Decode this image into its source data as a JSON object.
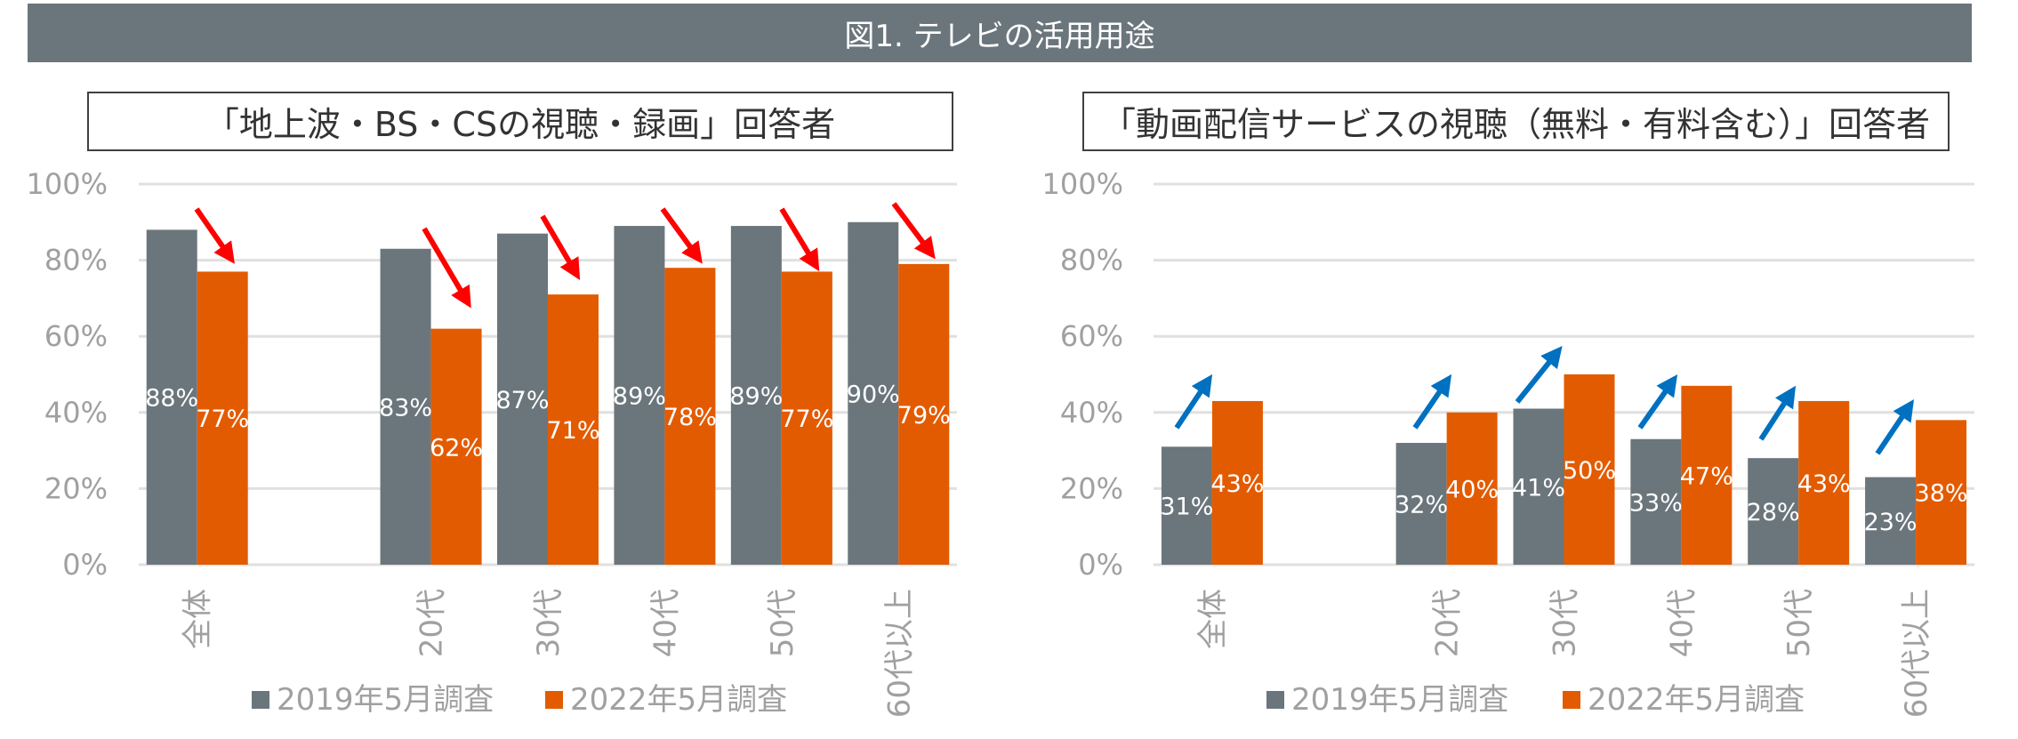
{
  "header": {
    "title": "図1. テレビの活用用途"
  },
  "colors": {
    "header": "#6b767c",
    "series2019": "#6b767c",
    "series2022": "#e35b00",
    "arrow_down": "#ff0000",
    "arrow_up": "#0070c0",
    "grid": "#e0e0e0",
    "axis_text": "#a0a0a0"
  },
  "chart_data": [
    {
      "type": "bar",
      "title": "「地上波・BS・CSの視聴・録画」回答者",
      "categories": [
        "全体",
        "",
        "20代",
        "30代",
        "40代",
        "50代",
        "60代以上"
      ],
      "series": [
        {
          "name": "2019年5月調査",
          "values": [
            88,
            null,
            83,
            87,
            89,
            89,
            90
          ],
          "labels": [
            "88%",
            "",
            "83%",
            "87%",
            "89%",
            "89%",
            "90%"
          ]
        },
        {
          "name": "2022年5月調査",
          "values": [
            77,
            null,
            62,
            71,
            78,
            77,
            79
          ],
          "labels": [
            "77%",
            "",
            "62%",
            "71%",
            "78%",
            "77%",
            "79%"
          ]
        }
      ],
      "ylim": [
        0,
        100
      ],
      "yticks": [
        "0%",
        "20%",
        "40%",
        "60%",
        "80%",
        "100%"
      ],
      "grid": true,
      "legend": "bottom",
      "annotations": "red down arrows per group"
    },
    {
      "type": "bar",
      "title": "「動画配信サービスの視聴（無料・有料含む）」回答者",
      "categories": [
        "全体",
        "",
        "20代",
        "30代",
        "40代",
        "50代",
        "60代以上"
      ],
      "series": [
        {
          "name": "2019年5月調査",
          "values": [
            31,
            null,
            32,
            41,
            33,
            28,
            23
          ],
          "labels": [
            "31%",
            "",
            "32%",
            "41%",
            "33%",
            "28%",
            "23%"
          ]
        },
        {
          "name": "2022年5月調査",
          "values": [
            43,
            null,
            40,
            50,
            47,
            43,
            38
          ],
          "labels": [
            "43%",
            "",
            "40%",
            "50%",
            "47%",
            "43%",
            "38%"
          ]
        }
      ],
      "ylim": [
        0,
        100
      ],
      "yticks": [
        "0%",
        "20%",
        "40%",
        "60%",
        "80%",
        "100%"
      ],
      "grid": true,
      "legend": "bottom",
      "annotations": "blue up arrows per group"
    }
  ]
}
